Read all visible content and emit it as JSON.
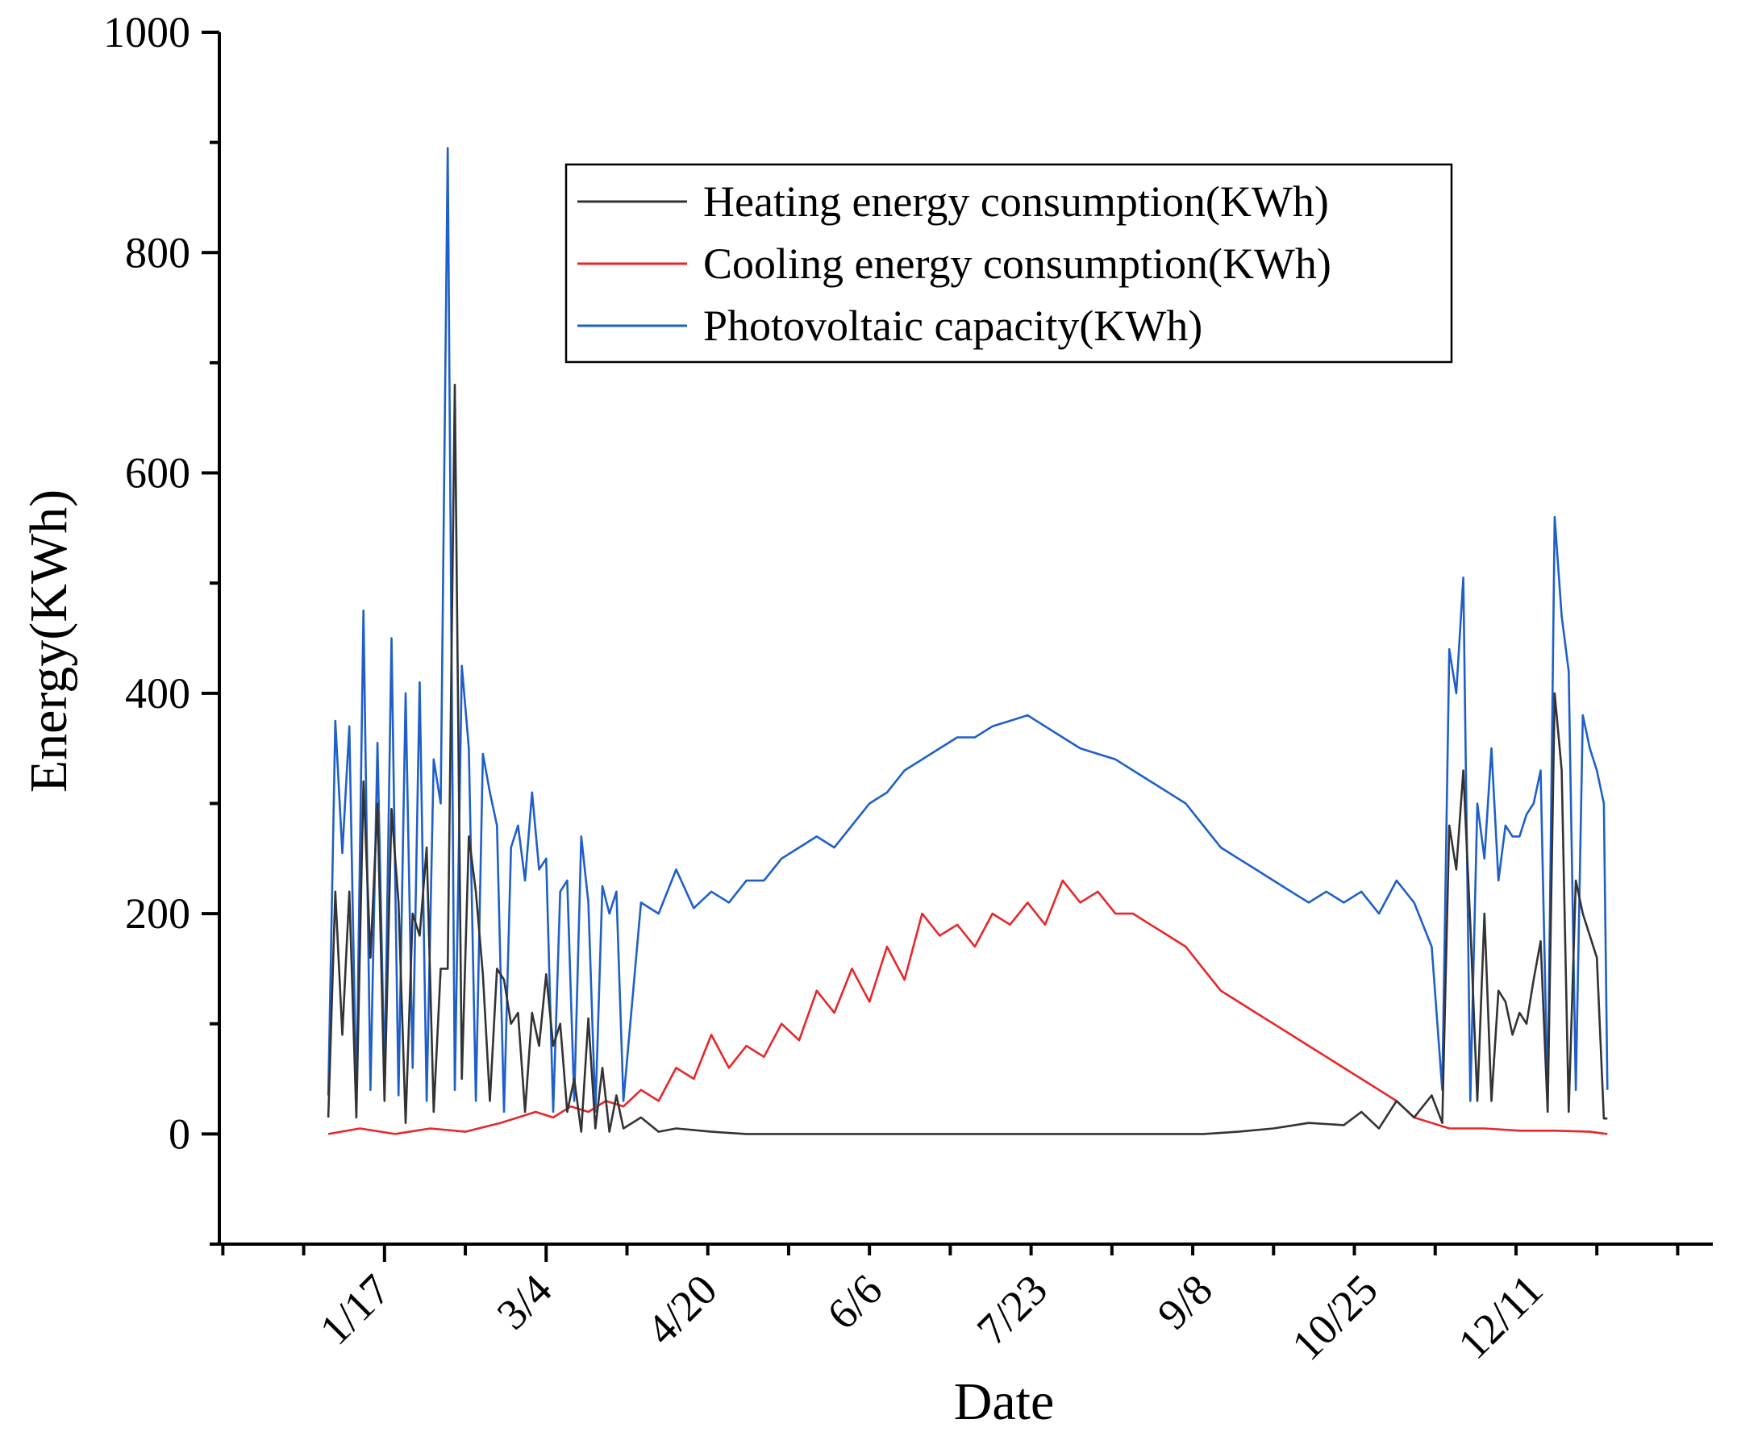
{
  "chart_data": {
    "type": "line",
    "title": "",
    "xlabel": "Date",
    "ylabel": "Energy(KWh)",
    "ylim": [
      -100,
      1000
    ],
    "yticks": [
      0,
      200,
      400,
      600,
      800,
      1000
    ],
    "xlim": [
      -30,
      395
    ],
    "xticks": [
      {
        "label": "1/17",
        "day": 17
      },
      {
        "label": "3/4",
        "day": 63
      },
      {
        "label": "4/20",
        "day": 110
      },
      {
        "label": "6/6",
        "day": 157
      },
      {
        "label": "7/23",
        "day": 204
      },
      {
        "label": "9/8",
        "day": 251
      },
      {
        "label": "10/25",
        "day": 298
      },
      {
        "label": "12/11",
        "day": 345
      }
    ],
    "legend_position": "top-right",
    "series": [
      {
        "name": "Heating energy consumption(KWh)",
        "color": "#333333",
        "x": [
          1,
          3,
          5,
          7,
          9,
          11,
          13,
          15,
          17,
          19,
          21,
          23,
          25,
          27,
          29,
          31,
          33,
          35,
          37,
          39,
          41,
          43,
          45,
          47,
          49,
          51,
          53,
          55,
          57,
          59,
          61,
          63,
          65,
          67,
          69,
          71,
          73,
          75,
          77,
          79,
          81,
          83,
          85,
          90,
          95,
          100,
          110,
          120,
          130,
          140,
          150,
          160,
          170,
          180,
          190,
          200,
          210,
          220,
          230,
          240,
          250,
          260,
          270,
          280,
          290,
          295,
          300,
          305,
          310,
          315,
          318,
          320,
          322,
          324,
          326,
          328,
          330,
          332,
          334,
          336,
          338,
          340,
          342,
          344,
          346,
          348,
          350,
          352,
          354,
          356,
          358,
          360,
          362,
          364,
          365
        ],
        "values": [
          15,
          220,
          90,
          220,
          15,
          320,
          160,
          300,
          30,
          295,
          210,
          10,
          200,
          180,
          260,
          20,
          150,
          150,
          680,
          50,
          270,
          220,
          145,
          30,
          150,
          140,
          100,
          110,
          20,
          110,
          80,
          145,
          80,
          100,
          20,
          50,
          2,
          105,
          5,
          60,
          2,
          35,
          5,
          15,
          2,
          5,
          2,
          0,
          0,
          0,
          0,
          0,
          0,
          0,
          0,
          0,
          0,
          0,
          0,
          0,
          0,
          2,
          5,
          10,
          8,
          20,
          5,
          30,
          15,
          35,
          10,
          280,
          240,
          330,
          190,
          30,
          200,
          30,
          130,
          120,
          90,
          110,
          100,
          140,
          175,
          20,
          400,
          330,
          20,
          230,
          200,
          180,
          160,
          14,
          14
        ]
      },
      {
        "name": "Cooling energy consumption(KWh)",
        "color": "#e8262a",
        "x": [
          1,
          10,
          20,
          30,
          40,
          50,
          55,
          60,
          65,
          70,
          75,
          80,
          85,
          90,
          95,
          100,
          105,
          110,
          115,
          120,
          125,
          130,
          135,
          140,
          145,
          150,
          155,
          160,
          165,
          170,
          175,
          180,
          185,
          190,
          195,
          200,
          205,
          210,
          215,
          220,
          225,
          230,
          235,
          240,
          245,
          250,
          255,
          260,
          265,
          270,
          275,
          280,
          285,
          290,
          295,
          300,
          305,
          310,
          320,
          330,
          340,
          350,
          360,
          365
        ],
        "values": [
          0,
          5,
          0,
          5,
          2,
          10,
          15,
          20,
          15,
          25,
          20,
          30,
          25,
          40,
          30,
          60,
          50,
          90,
          60,
          80,
          70,
          100,
          85,
          130,
          110,
          150,
          120,
          170,
          140,
          200,
          180,
          190,
          170,
          200,
          190,
          210,
          190,
          230,
          210,
          220,
          200,
          200,
          190,
          180,
          170,
          150,
          130,
          120,
          110,
          100,
          90,
          80,
          70,
          60,
          50,
          40,
          30,
          15,
          5,
          5,
          3,
          3,
          2,
          0
        ]
      },
      {
        "name": "Photovoltaic capacity(KWh)",
        "color": "#1f5fc9",
        "x": [
          1,
          3,
          5,
          7,
          9,
          11,
          13,
          15,
          17,
          19,
          21,
          23,
          25,
          27,
          29,
          31,
          33,
          35,
          37,
          39,
          41,
          43,
          45,
          47,
          49,
          51,
          53,
          55,
          57,
          59,
          61,
          63,
          65,
          67,
          69,
          71,
          73,
          75,
          77,
          79,
          81,
          83,
          85,
          90,
          95,
          100,
          105,
          110,
          115,
          120,
          125,
          130,
          135,
          140,
          145,
          150,
          155,
          160,
          165,
          170,
          175,
          180,
          185,
          190,
          195,
          200,
          205,
          210,
          215,
          220,
          225,
          230,
          235,
          240,
          245,
          250,
          255,
          260,
          265,
          270,
          275,
          280,
          285,
          290,
          295,
          300,
          305,
          310,
          315,
          318,
          320,
          322,
          324,
          326,
          328,
          330,
          332,
          334,
          336,
          338,
          340,
          342,
          344,
          346,
          348,
          350,
          352,
          354,
          356,
          358,
          360,
          362,
          364,
          365
        ],
        "values": [
          35,
          375,
          255,
          370,
          30,
          475,
          40,
          355,
          50,
          450,
          35,
          400,
          60,
          410,
          30,
          340,
          300,
          895,
          40,
          425,
          350,
          30,
          345,
          310,
          280,
          20,
          260,
          280,
          230,
          310,
          240,
          250,
          20,
          220,
          230,
          30,
          270,
          210,
          20,
          225,
          200,
          220,
          30,
          210,
          200,
          240,
          205,
          220,
          210,
          230,
          230,
          250,
          260,
          270,
          260,
          280,
          300,
          310,
          330,
          340,
          350,
          360,
          360,
          370,
          375,
          380,
          370,
          360,
          350,
          345,
          340,
          330,
          320,
          310,
          300,
          280,
          260,
          250,
          240,
          230,
          220,
          210,
          220,
          210,
          220,
          200,
          230,
          210,
          170,
          40,
          440,
          400,
          505,
          30,
          300,
          250,
          350,
          230,
          280,
          270,
          270,
          290,
          300,
          330,
          30,
          560,
          470,
          420,
          40,
          380,
          350,
          330,
          300,
          40
        ]
      }
    ]
  }
}
